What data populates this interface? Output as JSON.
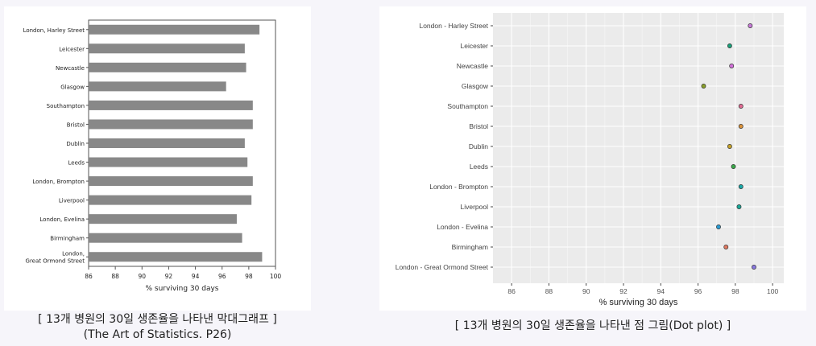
{
  "chart_data": [
    {
      "type": "bar",
      "orientation": "horizontal",
      "categories": [
        "London, Harley Street",
        "Leicester",
        "Newcastle",
        "Glasgow",
        "Southampton",
        "Bristol",
        "Dublin",
        "Leeds",
        "London, Brompton",
        "Liverpool",
        "London, Evelina",
        "Birmingham",
        "London,\nGreat Ormond Street"
      ],
      "values": [
        98.8,
        97.7,
        97.8,
        96.3,
        98.3,
        98.3,
        97.7,
        97.9,
        98.3,
        98.2,
        97.1,
        97.5,
        99.0
      ],
      "xlabel": "% surviving 30 days",
      "xlim": [
        86,
        100
      ],
      "xticks": [
        86,
        88,
        90,
        92,
        94,
        96,
        98,
        100
      ],
      "grid": false,
      "bar_color": "#888888"
    },
    {
      "type": "scatter",
      "categories": [
        "London - Harley Street",
        "Leicester",
        "Newcastle",
        "Glasgow",
        "Southampton",
        "Bristol",
        "Dublin",
        "Leeds",
        "London - Brompton",
        "Liverpool",
        "London - Evelina",
        "Birmingham",
        "London - Great Ormond Street"
      ],
      "values": [
        98.8,
        97.7,
        97.8,
        96.3,
        98.3,
        98.3,
        97.7,
        97.9,
        98.3,
        98.2,
        97.1,
        97.5,
        99.0
      ],
      "point_colors": [
        "#c77ad8",
        "#1aa07a",
        "#d170d8",
        "#8aa02a",
        "#e06b93",
        "#d9913a",
        "#c4a12a",
        "#3aa84a",
        "#1aa8a8",
        "#1aa898",
        "#2a9ad0",
        "#e07a62",
        "#8878e0"
      ],
      "xlabel": "% surviving 30 days",
      "xlim": [
        85,
        100.6
      ],
      "xticks": [
        86,
        88,
        90,
        92,
        94,
        96,
        98,
        100
      ],
      "grid": true,
      "background": "#ebebeb"
    }
  ],
  "captions": {
    "left_line1": "[ 13개 병원의 30일 생존율을 나타낸 막대그래프 ]",
    "left_line2": "(The Art of Statistics. P26)",
    "right_line1": "[ 13개 병원의 30일 생존율을 나타낸 점 그림(Dot plot) ]"
  }
}
